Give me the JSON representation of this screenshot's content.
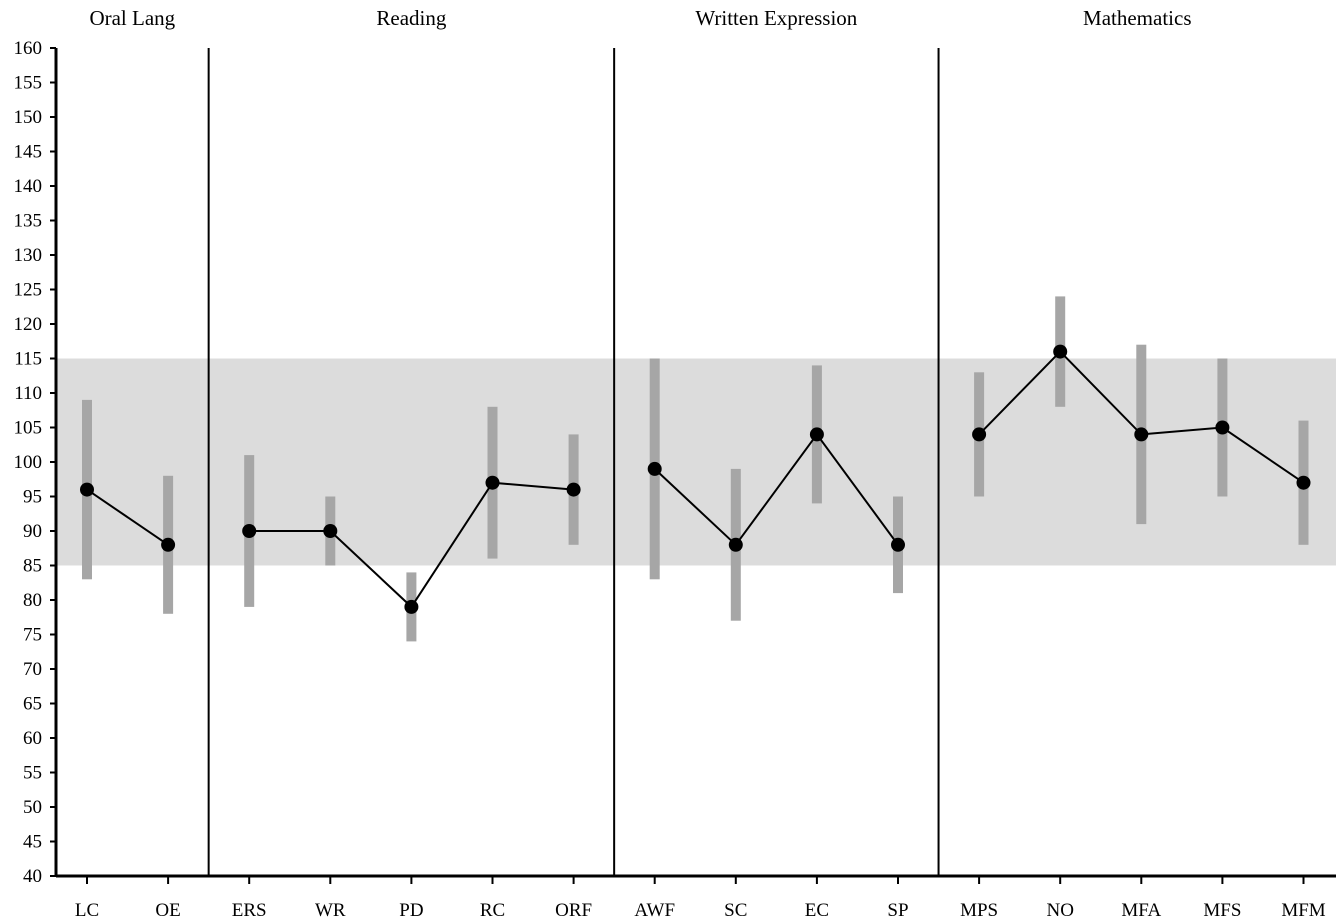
{
  "chart_data": {
    "type": "line",
    "ylim": [
      40,
      160
    ],
    "y_ticks": [
      40,
      45,
      50,
      55,
      60,
      65,
      70,
      75,
      80,
      85,
      90,
      95,
      100,
      105,
      110,
      115,
      120,
      125,
      130,
      135,
      140,
      145,
      150,
      155,
      160
    ],
    "average_band": [
      85,
      115
    ],
    "groups": [
      {
        "label": "Oral Lang",
        "categories": [
          "LC",
          "OE"
        ]
      },
      {
        "label": "Reading",
        "categories": [
          "ERS",
          "WR",
          "PD",
          "RC",
          "ORF"
        ]
      },
      {
        "label": "Written Expression",
        "categories": [
          "AWF",
          "SC",
          "EC",
          "SP"
        ]
      },
      {
        "label": "Mathematics",
        "categories": [
          "MPS",
          "NO",
          "MFA",
          "MFS",
          "MFM"
        ]
      }
    ],
    "categories": [
      "LC",
      "OE",
      "ERS",
      "WR",
      "PD",
      "RC",
      "ORF",
      "AWF",
      "SC",
      "EC",
      "SP",
      "MPS",
      "NO",
      "MFA",
      "MFS",
      "MFM"
    ],
    "values": [
      96,
      88,
      90,
      90,
      79,
      97,
      96,
      99,
      88,
      104,
      88,
      104,
      116,
      104,
      105,
      97
    ],
    "ranges": [
      [
        83,
        109
      ],
      [
        78,
        98
      ],
      [
        79,
        101
      ],
      [
        85,
        95
      ],
      [
        74,
        84
      ],
      [
        86,
        108
      ],
      [
        88,
        104
      ],
      [
        83,
        115
      ],
      [
        77,
        99
      ],
      [
        94,
        114
      ],
      [
        81,
        95
      ],
      [
        95,
        113
      ],
      [
        108,
        124
      ],
      [
        91,
        117
      ],
      [
        95,
        115
      ],
      [
        88,
        106
      ]
    ],
    "colors": {
      "band": "#dcdcdc",
      "range_bar": "#a6a6a6",
      "line": "#000000",
      "point": "#000000"
    },
    "grid": false
  }
}
